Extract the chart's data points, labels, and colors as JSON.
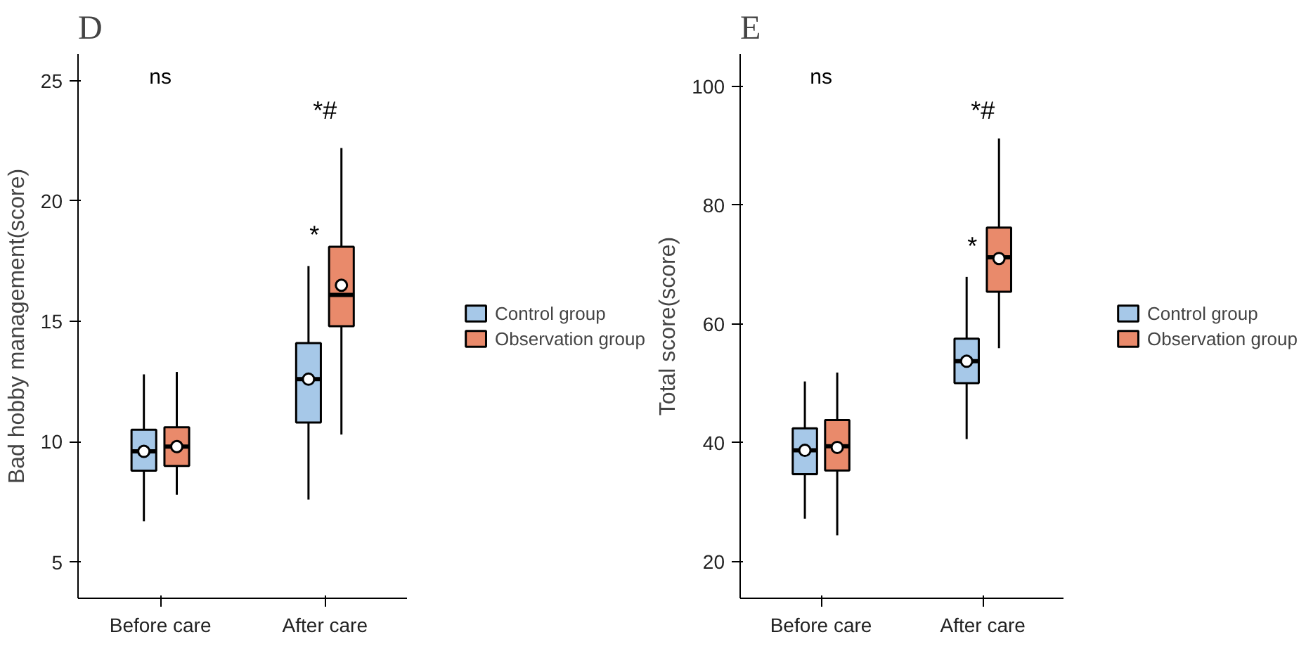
{
  "chart_data": [
    {
      "type": "box",
      "title": "D",
      "ylabel": "Bad hobby management(score)",
      "categories": [
        "Before care",
        "After care"
      ],
      "ylim": [
        3.5,
        26.1
      ],
      "yticks": [
        5,
        10,
        15,
        20,
        25
      ],
      "grid": false,
      "legend": "right",
      "annotations": [
        "ns",
        {
          "text": "*",
          "x": "After care",
          "y": 17.3
        },
        "*#"
      ],
      "series": [
        {
          "name": "Control group",
          "color": "#a6c8e8",
          "boxes": [
            {
              "low": 6.7,
              "q1": 8.8,
              "median": 9.6,
              "q3": 10.5,
              "high": 12.8,
              "mean": 9.6
            },
            {
              "low": 7.6,
              "q1": 10.8,
              "median": 12.6,
              "q3": 14.1,
              "high": 17.3,
              "mean": 12.6
            }
          ]
        },
        {
          "name": "Observation group",
          "color": "#e98a6b",
          "boxes": [
            {
              "low": 7.8,
              "q1": 9.0,
              "median": 9.8,
              "q3": 10.6,
              "high": 12.9,
              "mean": 9.8
            },
            {
              "low": 10.3,
              "q1": 14.8,
              "median": 16.1,
              "q3": 18.1,
              "high": 22.2,
              "mean": 16.5
            }
          ]
        }
      ]
    },
    {
      "type": "box",
      "title": "E",
      "ylabel": "Total score(score)",
      "categories": [
        "Before care",
        "After care"
      ],
      "ylim": [
        13.8,
        105.4
      ],
      "yticks": [
        20,
        40,
        60,
        80,
        100
      ],
      "grid": false,
      "legend": "right",
      "annotations": [
        "ns",
        {
          "text": "*",
          "x": "After care",
          "y": 67.9
        },
        "*#"
      ],
      "series": [
        {
          "name": "Control group",
          "color": "#a6c8e8",
          "boxes": [
            {
              "low": 27.2,
              "q1": 34.7,
              "median": 38.7,
              "q3": 42.4,
              "high": 50.3,
              "mean": 38.7
            },
            {
              "low": 40.6,
              "q1": 50.0,
              "median": 53.7,
              "q3": 57.5,
              "high": 67.9,
              "mean": 53.7
            }
          ]
        },
        {
          "name": "Observation group",
          "color": "#e98a6b",
          "boxes": [
            {
              "low": 24.4,
              "q1": 35.3,
              "median": 39.4,
              "q3": 43.8,
              "high": 51.8,
              "mean": 39.2
            },
            {
              "low": 55.9,
              "q1": 65.4,
              "median": 71.2,
              "q3": 76.2,
              "high": 91.2,
              "mean": 71.0
            }
          ]
        }
      ]
    }
  ]
}
